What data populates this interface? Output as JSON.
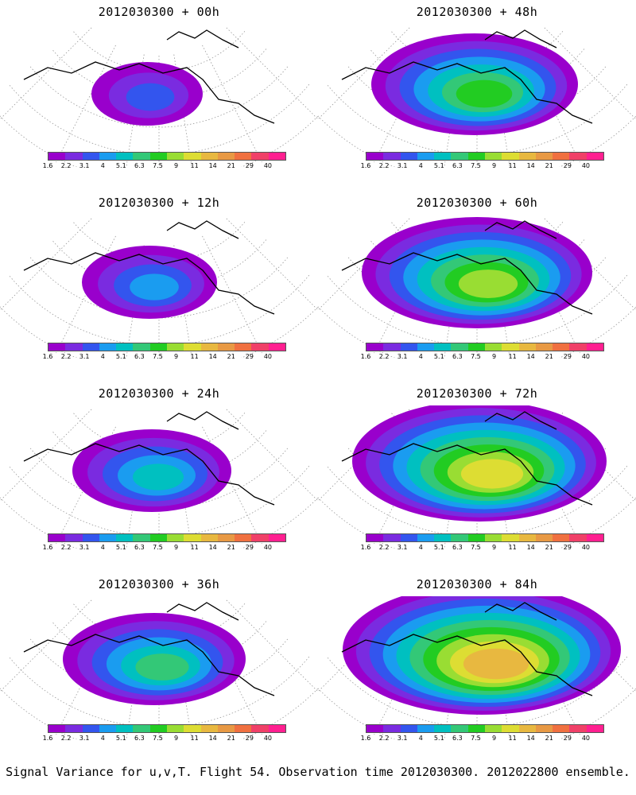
{
  "panels": [
    {
      "title": "2012030300 + 00h"
    },
    {
      "title": "2012030300 + 48h"
    },
    {
      "title": "2012030300 + 12h"
    },
    {
      "title": "2012030300 + 60h"
    },
    {
      "title": "2012030300 + 24h"
    },
    {
      "title": "2012030300 + 72h"
    },
    {
      "title": "2012030300 + 36h"
    },
    {
      "title": "2012030300 + 84h"
    }
  ],
  "colorbar": {
    "colors": [
      "#9900cc",
      "#7a2be0",
      "#3355ee",
      "#1a9cf0",
      "#00c0c0",
      "#33c877",
      "#22cc22",
      "#99dd33",
      "#dddd33",
      "#e8b840",
      "#e89944",
      "#f07040",
      "#f04068",
      "#ff1f90"
    ],
    "labels": [
      "1.6",
      "2.2",
      "3.1",
      "4",
      "5.1",
      "6.3",
      "7.5",
      "9",
      "11",
      "14",
      "21",
      "29",
      "40"
    ]
  },
  "caption": "Signal Variance for u,v,T. Flight 54. Observation time 2012030300. 2012022800 ensemble."
}
